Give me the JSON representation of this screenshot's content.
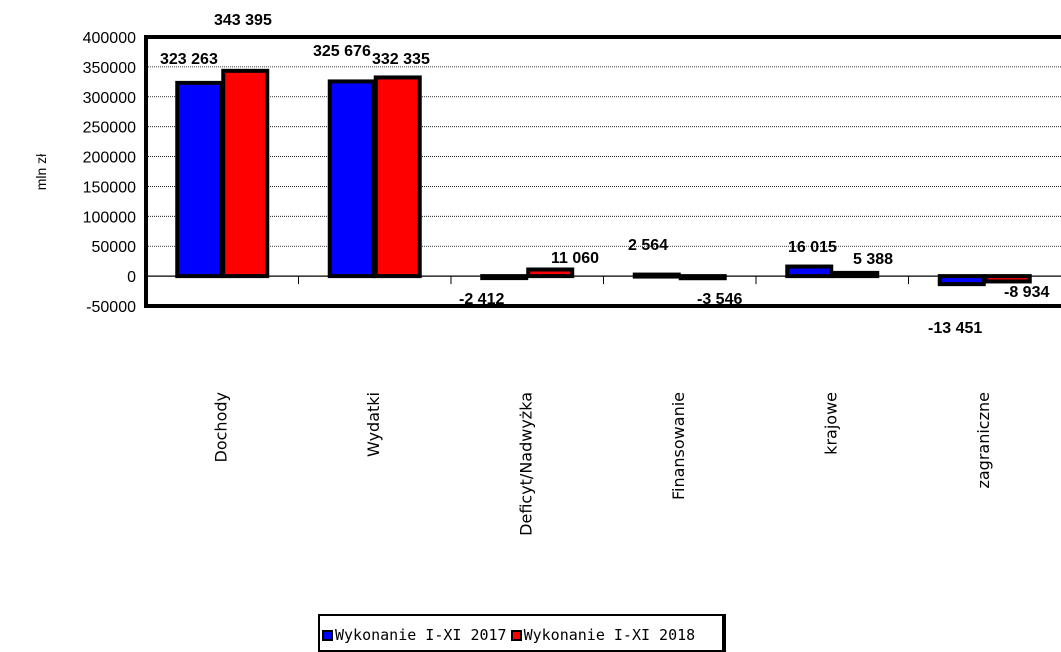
{
  "chart_data": {
    "type": "bar",
    "title": "",
    "xlabel": "",
    "ylabel": "mln zł",
    "ylim": [
      -50000,
      400000
    ],
    "yticks": [
      400000,
      350000,
      300000,
      250000,
      200000,
      150000,
      100000,
      50000,
      0,
      -50000
    ],
    "grid": true,
    "legend_position": "bottom",
    "categories": [
      "Dochody",
      "Wydatki",
      "Deficyt/Nadwyżka",
      "Finansowanie",
      "krajowe",
      "zagraniczne"
    ],
    "series": [
      {
        "name": "Wykonanie I-XI 2017",
        "color": "#0000ff",
        "values": [
          323263,
          325676,
          -2412,
          2564,
          16015,
          -13451
        ],
        "labels": [
          "323 263",
          "325 676",
          "-2 412",
          "2 564",
          "16 015",
          "-13 451"
        ]
      },
      {
        "name": "Wykonanie I-XI 2018",
        "color": "#ff0000",
        "values": [
          343395,
          332335,
          11060,
          -3546,
          5388,
          -8934
        ],
        "labels": [
          "343 395",
          "332 335",
          "11 060",
          "-3 546",
          "5 388",
          "-8 934"
        ]
      }
    ]
  }
}
